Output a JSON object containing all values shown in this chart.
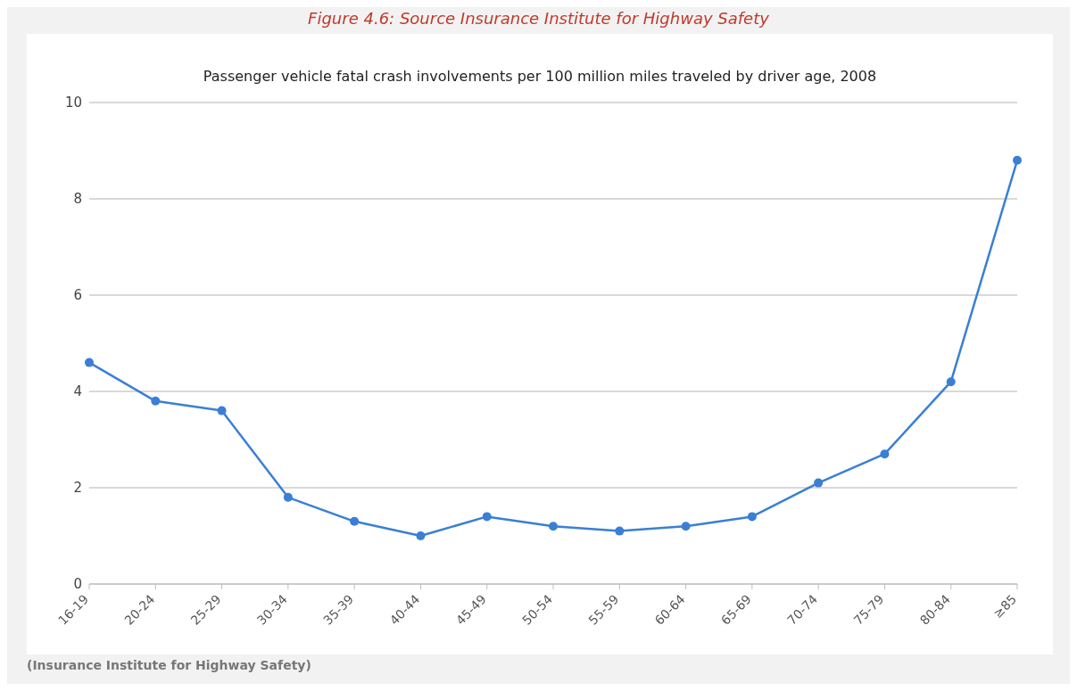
{
  "chart_data": {
    "type": "line",
    "title": "Passenger vehicle fatal crash involvements per 100 million miles traveled by driver age, 2008",
    "categories": [
      "16-19",
      "20-24",
      "25-29",
      "30-34",
      "35-39",
      "40-44",
      "45-49",
      "50-54",
      "55-59",
      "60-64",
      "65-69",
      "70-74",
      "75-79",
      "80-84",
      "≥85"
    ],
    "series": [
      {
        "color": "#3a7fd5",
        "values": [
          4.6,
          3.8,
          3.6,
          1.8,
          1.3,
          1.0,
          1.4,
          1.2,
          1.1,
          1.2,
          1.4,
          2.1,
          2.7,
          4.2,
          8.8
        ]
      }
    ],
    "ylim": [
      0,
      10
    ],
    "yticks": [
      0,
      2,
      4,
      6,
      8,
      10
    ],
    "grid": "y",
    "legend": false,
    "marker": "circle",
    "line_style": "solid",
    "annotations": [
      "Figure 4.6: Source Insurance Institute for Highway Safety",
      "(Insurance Institute for Highway Safety)"
    ]
  }
}
